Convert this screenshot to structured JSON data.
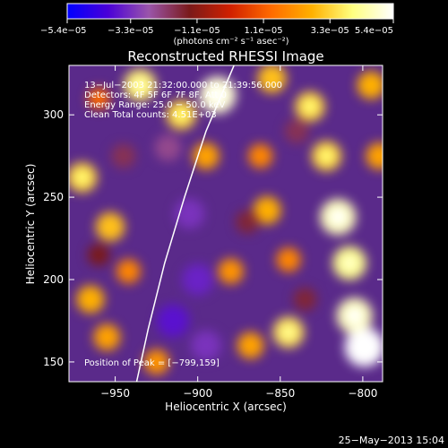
{
  "chart_data": {
    "type": "heatmap",
    "title": "Reconstructed RHESSI Image",
    "xlabel": "Heliocentric X (arcsec)",
    "ylabel": "Heliocentric Y (arcsec)",
    "xlim": [
      -978,
      -788
    ],
    "ylim": [
      138,
      330
    ],
    "x_ticks": [
      -950,
      -900,
      -850,
      -800
    ],
    "x_tick_labels": [
      "−950",
      "−900",
      "−850",
      "−800"
    ],
    "y_ticks": [
      150,
      200,
      250,
      300
    ],
    "y_tick_labels": [
      "150",
      "200",
      "250",
      "300"
    ],
    "colorbar": {
      "ticks": [
        -5.4e-05,
        -3.3e-05,
        -1.1e-05,
        1.1e-05,
        3.3e-05,
        5.4e-05
      ],
      "tick_labels": [
        "−5.4e−05",
        "−3.3e−05",
        "−1.1e−05",
        "1.1e−05",
        "3.3e−05",
        "5.4e−05"
      ],
      "range": [
        -5.4e-05,
        5.4e-05
      ],
      "unit_label": "(photons cm⁻² s⁻¹ asec⁻²)",
      "colors": [
        "#0000ff",
        "#4a00d8",
        "#9a55aa",
        "#7a1a1a",
        "#d02000",
        "#ff6a00",
        "#ffb000",
        "#ffff80",
        "#ffffff"
      ]
    },
    "annotations": [
      "13−Jul−2003 21:32:00.000 to 21:39:56.000",
      "Detectors: 4F 5F 6F 7F 8F, Att 0",
      "Energy Range: 25.0 − 50.0 keV",
      "Clean    Total counts: 4.51E+03"
    ],
    "peak_label": "Position of Peak = [−799,159]",
    "peak": [
      -799,
      159
    ],
    "limb": [
      [
        -937,
        138
      ],
      [
        -930,
        170
      ],
      [
        -920,
        210
      ],
      [
        -908,
        250
      ],
      [
        -895,
        290
      ],
      [
        -878,
        330
      ]
    ],
    "blobs": [
      {
        "x": -960,
        "y": 310,
        "v": 0.25
      },
      {
        "x": -935,
        "y": 318,
        "v": 0.7
      },
      {
        "x": -910,
        "y": 300,
        "v": 0.6
      },
      {
        "x": -895,
        "y": 275,
        "v": 0.45
      },
      {
        "x": -888,
        "y": 312,
        "v": 0.9
      },
      {
        "x": -855,
        "y": 322,
        "v": 0.55
      },
      {
        "x": -832,
        "y": 305,
        "v": 0.6
      },
      {
        "x": -795,
        "y": 318,
        "v": 0.5
      },
      {
        "x": -970,
        "y": 262,
        "v": 0.6
      },
      {
        "x": -953,
        "y": 232,
        "v": 0.55
      },
      {
        "x": -942,
        "y": 205,
        "v": 0.35
      },
      {
        "x": -965,
        "y": 188,
        "v": 0.5
      },
      {
        "x": -955,
        "y": 165,
        "v": 0.45
      },
      {
        "x": -925,
        "y": 150,
        "v": 0.4
      },
      {
        "x": -862,
        "y": 275,
        "v": 0.35
      },
      {
        "x": -858,
        "y": 242,
        "v": 0.5
      },
      {
        "x": -845,
        "y": 212,
        "v": 0.35
      },
      {
        "x": -880,
        "y": 205,
        "v": 0.4
      },
      {
        "x": -822,
        "y": 275,
        "v": 0.6
      },
      {
        "x": -815,
        "y": 238,
        "v": 0.85
      },
      {
        "x": -808,
        "y": 210,
        "v": 0.75
      },
      {
        "x": -805,
        "y": 178,
        "v": 0.85
      },
      {
        "x": -799,
        "y": 159,
        "v": 1.0
      },
      {
        "x": -845,
        "y": 168,
        "v": 0.65
      },
      {
        "x": -868,
        "y": 160,
        "v": 0.45
      },
      {
        "x": -790,
        "y": 275,
        "v": 0.45
      },
      {
        "x": -918,
        "y": 280,
        "v": -0.45
      },
      {
        "x": -905,
        "y": 240,
        "v": -0.6
      },
      {
        "x": -900,
        "y": 200,
        "v": -0.65
      },
      {
        "x": -915,
        "y": 175,
        "v": -0.7
      },
      {
        "x": -895,
        "y": 160,
        "v": -0.6
      },
      {
        "x": -945,
        "y": 275,
        "v": -0.35
      },
      {
        "x": -870,
        "y": 235,
        "v": -0.3
      },
      {
        "x": -840,
        "y": 290,
        "v": -0.35
      },
      {
        "x": -835,
        "y": 188,
        "v": -0.3
      },
      {
        "x": -960,
        "y": 215,
        "v": -0.25
      }
    ]
  },
  "footer": {
    "timestamp": "25−May−2013 15:04"
  }
}
